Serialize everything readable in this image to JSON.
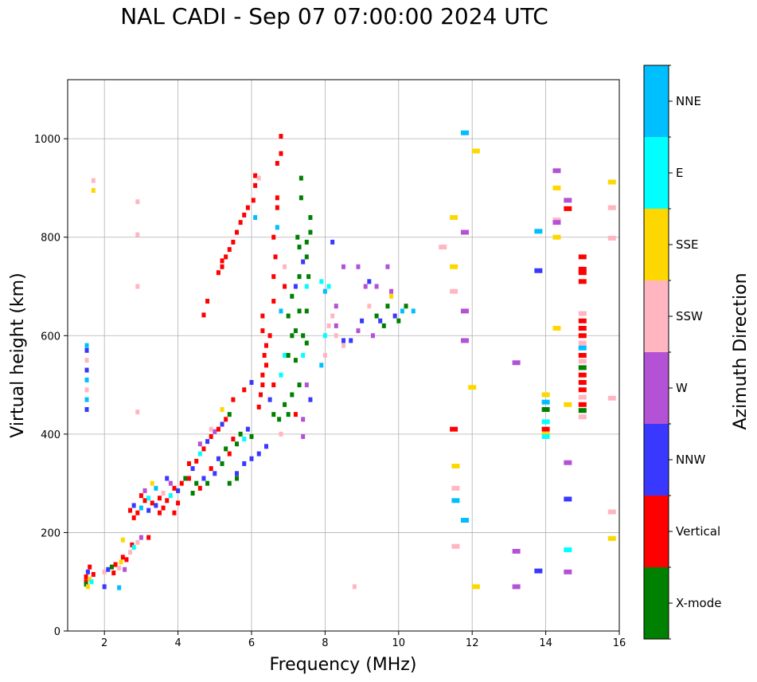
{
  "chart_data": {
    "type": "scatter",
    "title": "NAL CADI - Sep 07 07:00:00 2024 UTC",
    "xlabel": "Frequency (MHz)",
    "ylabel": "Virtual height (km)",
    "xlim": [
      1,
      16
    ],
    "ylim": [
      0,
      1120
    ],
    "x_ticks": [
      "2",
      "4",
      "6",
      "8",
      "10",
      "12",
      "14",
      "16"
    ],
    "y_ticks": [
      "0",
      "200",
      "400",
      "600",
      "800",
      "1000"
    ],
    "grid": true,
    "colorbar": {
      "label": "Azimuth Direction",
      "categories": [
        {
          "name": "X-mode",
          "color": "#008000"
        },
        {
          "name": "Vertical",
          "color": "#ff0000"
        },
        {
          "name": "NNW",
          "color": "#3838ff"
        },
        {
          "name": "W",
          "color": "#b452d6"
        },
        {
          "name": "SSW",
          "color": "#ffb6c1"
        },
        {
          "name": "SSE",
          "color": "#ffd700"
        },
        {
          "name": "E",
          "color": "#00ffff"
        },
        {
          "name": "NNE",
          "color": "#00bfff"
        }
      ]
    },
    "points": [
      [
        1.5,
        100,
        1
      ],
      [
        1.5,
        110,
        1
      ],
      [
        1.55,
        120,
        2
      ],
      [
        1.6,
        105,
        5
      ],
      [
        1.5,
        95,
        0
      ],
      [
        1.6,
        130,
        1
      ],
      [
        1.7,
        115,
        1
      ],
      [
        1.55,
        90,
        5
      ],
      [
        1.65,
        100,
        6
      ],
      [
        1.52,
        450,
        2
      ],
      [
        1.52,
        470,
        7
      ],
      [
        1.52,
        490,
        4
      ],
      [
        1.52,
        510,
        7
      ],
      [
        1.52,
        530,
        2
      ],
      [
        1.52,
        550,
        4
      ],
      [
        1.52,
        570,
        2
      ],
      [
        1.52,
        580,
        7
      ],
      [
        1.7,
        895,
        5
      ],
      [
        1.7,
        915,
        4
      ],
      [
        2.0,
        120,
        4
      ],
      [
        2.1,
        125,
        2
      ],
      [
        2.2,
        130,
        0
      ],
      [
        2.25,
        118,
        1
      ],
      [
        2.3,
        135,
        1
      ],
      [
        2.4,
        128,
        4
      ],
      [
        2.45,
        140,
        5
      ],
      [
        2.5,
        150,
        1
      ],
      [
        2.55,
        125,
        3
      ],
      [
        2.6,
        145,
        1
      ],
      [
        2.7,
        160,
        4
      ],
      [
        2.75,
        175,
        1
      ],
      [
        2.5,
        185,
        5
      ],
      [
        2.8,
        170,
        6
      ],
      [
        2.9,
        180,
        4
      ],
      [
        3.0,
        190,
        3
      ],
      [
        3.2,
        190,
        1
      ],
      [
        2.4,
        88,
        7
      ],
      [
        2.0,
        90,
        2
      ],
      [
        2.9,
        700,
        4
      ],
      [
        2.9,
        805,
        4
      ],
      [
        2.9,
        872,
        4
      ],
      [
        2.9,
        445,
        4
      ],
      [
        2.7,
        245,
        1
      ],
      [
        2.8,
        255,
        2
      ],
      [
        2.9,
        240,
        1
      ],
      [
        3.0,
        250,
        7
      ],
      [
        3.1,
        265,
        1
      ],
      [
        3.2,
        270,
        6
      ],
      [
        3.3,
        260,
        1
      ],
      [
        3.4,
        255,
        2
      ],
      [
        3.5,
        270,
        1
      ],
      [
        3.6,
        280,
        4
      ],
      [
        3.7,
        265,
        1
      ],
      [
        3.8,
        275,
        6
      ],
      [
        3.9,
        290,
        1
      ],
      [
        4.0,
        285,
        2
      ],
      [
        4.1,
        300,
        1
      ],
      [
        4.2,
        310,
        0
      ],
      [
        3.0,
        275,
        1
      ],
      [
        3.2,
        245,
        2
      ],
      [
        3.4,
        290,
        7
      ],
      [
        3.6,
        250,
        1
      ],
      [
        3.8,
        300,
        3
      ],
      [
        4.0,
        260,
        1
      ],
      [
        2.8,
        230,
        1
      ],
      [
        3.1,
        285,
        3
      ],
      [
        3.3,
        300,
        5
      ],
      [
        3.5,
        240,
        1
      ],
      [
        3.7,
        310,
        2
      ],
      [
        3.9,
        240,
        1
      ],
      [
        4.3,
        310,
        1
      ],
      [
        4.4,
        330,
        2
      ],
      [
        4.5,
        345,
        1
      ],
      [
        4.6,
        360,
        6
      ],
      [
        4.7,
        370,
        1
      ],
      [
        4.8,
        385,
        2
      ],
      [
        4.9,
        395,
        1
      ],
      [
        5.0,
        405,
        3
      ],
      [
        5.1,
        410,
        1
      ],
      [
        5.2,
        420,
        2
      ],
      [
        5.3,
        430,
        1
      ],
      [
        5.4,
        440,
        0
      ],
      [
        4.5,
        300,
        0
      ],
      [
        4.7,
        310,
        2
      ],
      [
        4.9,
        330,
        1
      ],
      [
        5.1,
        350,
        2
      ],
      [
        5.3,
        370,
        0
      ],
      [
        5.5,
        390,
        1
      ],
      [
        5.7,
        400,
        0
      ],
      [
        5.9,
        410,
        2
      ],
      [
        4.4,
        280,
        0
      ],
      [
        4.6,
        290,
        1
      ],
      [
        4.8,
        300,
        0
      ],
      [
        5.0,
        320,
        2
      ],
      [
        5.2,
        340,
        0
      ],
      [
        5.4,
        360,
        1
      ],
      [
        5.6,
        380,
        0
      ],
      [
        5.8,
        390,
        6
      ],
      [
        6.0,
        395,
        0
      ],
      [
        4.3,
        340,
        1
      ],
      [
        4.6,
        380,
        3
      ],
      [
        4.9,
        410,
        4
      ],
      [
        5.2,
        450,
        5
      ],
      [
        5.5,
        470,
        1
      ],
      [
        5.8,
        490,
        1
      ],
      [
        6.0,
        505,
        2
      ],
      [
        5.6,
        320,
        2
      ],
      [
        5.8,
        340,
        2
      ],
      [
        6.0,
        350,
        2
      ],
      [
        6.2,
        360,
        2
      ],
      [
        6.4,
        375,
        2
      ],
      [
        5.4,
        300,
        0
      ],
      [
        5.6,
        310,
        0
      ],
      [
        4.7,
        642,
        1
      ],
      [
        4.8,
        670,
        1
      ],
      [
        5.1,
        728,
        1
      ],
      [
        5.2,
        740,
        1
      ],
      [
        5.3,
        760,
        1
      ],
      [
        5.4,
        775,
        1
      ],
      [
        5.5,
        790,
        1
      ],
      [
        5.6,
        810,
        1
      ],
      [
        5.7,
        830,
        1
      ],
      [
        5.8,
        845,
        1
      ],
      [
        5.9,
        860,
        1
      ],
      [
        6.05,
        875,
        1
      ],
      [
        6.1,
        905,
        1
      ],
      [
        6.1,
        925,
        1
      ],
      [
        6.1,
        840,
        7
      ],
      [
        6.2,
        920,
        4
      ],
      [
        5.2,
        752,
        1
      ],
      [
        6.3,
        610,
        1
      ],
      [
        6.3,
        640,
        1
      ],
      [
        6.35,
        560,
        1
      ],
      [
        6.3,
        520,
        1
      ],
      [
        6.3,
        500,
        1
      ],
      [
        6.25,
        480,
        1
      ],
      [
        6.2,
        455,
        1
      ],
      [
        6.4,
        580,
        1
      ],
      [
        6.4,
        540,
        1
      ],
      [
        6.5,
        600,
        1
      ],
      [
        6.5,
        470,
        2
      ],
      [
        6.6,
        440,
        0
      ],
      [
        6.6,
        500,
        1
      ],
      [
        6.6,
        670,
        1
      ],
      [
        6.6,
        720,
        1
      ],
      [
        6.65,
        760,
        1
      ],
      [
        6.7,
        950,
        1
      ],
      [
        6.8,
        970,
        1
      ],
      [
        6.8,
        1005,
        1
      ],
      [
        6.7,
        880,
        1
      ],
      [
        6.7,
        860,
        1
      ],
      [
        6.7,
        820,
        7
      ],
      [
        6.6,
        800,
        1
      ],
      [
        6.8,
        650,
        7
      ],
      [
        6.9,
        700,
        1
      ],
      [
        6.9,
        740,
        4
      ],
      [
        6.9,
        560,
        6
      ],
      [
        6.8,
        520,
        6
      ],
      [
        6.75,
        430,
        0
      ],
      [
        6.8,
        400,
        4
      ],
      [
        7.0,
        640,
        0
      ],
      [
        7.1,
        680,
        0
      ],
      [
        7.2,
        700,
        2
      ],
      [
        7.3,
        720,
        0
      ],
      [
        7.4,
        750,
        2
      ],
      [
        7.5,
        760,
        0
      ],
      [
        7.5,
        700,
        6
      ],
      [
        7.3,
        650,
        0
      ],
      [
        7.1,
        600,
        0
      ],
      [
        7.0,
        560,
        0
      ],
      [
        7.2,
        550,
        0
      ],
      [
        7.4,
        560,
        6
      ],
      [
        7.5,
        585,
        0
      ],
      [
        7.3,
        500,
        0
      ],
      [
        7.1,
        480,
        0
      ],
      [
        7.0,
        440,
        0
      ],
      [
        6.9,
        460,
        0
      ],
      [
        7.2,
        440,
        1
      ],
      [
        7.4,
        430,
        3
      ],
      [
        7.5,
        500,
        3
      ],
      [
        7.6,
        840,
        0
      ],
      [
        7.6,
        810,
        0
      ],
      [
        7.5,
        790,
        0
      ],
      [
        7.3,
        780,
        0
      ],
      [
        7.25,
        800,
        0
      ],
      [
        7.35,
        880,
        0
      ],
      [
        7.35,
        920,
        0
      ],
      [
        7.4,
        600,
        0
      ],
      [
        7.55,
        720,
        0
      ],
      [
        7.5,
        650,
        0
      ],
      [
        7.2,
        610,
        0
      ],
      [
        7.6,
        470,
        2
      ],
      [
        7.4,
        395,
        3
      ],
      [
        7.9,
        540,
        7
      ],
      [
        8.0,
        560,
        4
      ],
      [
        8.0,
        600,
        6
      ],
      [
        8.1,
        620,
        4
      ],
      [
        8.2,
        640,
        4
      ],
      [
        8.3,
        660,
        3
      ],
      [
        8.5,
        590,
        2
      ],
      [
        8.7,
        590,
        2
      ],
      [
        8.9,
        610,
        3
      ],
      [
        9.0,
        630,
        2
      ],
      [
        9.2,
        660,
        4
      ],
      [
        9.3,
        600,
        3
      ],
      [
        9.4,
        640,
        0
      ],
      [
        9.5,
        630,
        2
      ],
      [
        9.6,
        620,
        0
      ],
      [
        9.7,
        660,
        0
      ],
      [
        9.8,
        680,
        5
      ],
      [
        9.9,
        640,
        2
      ],
      [
        10.0,
        630,
        0
      ],
      [
        10.1,
        650,
        7
      ],
      [
        10.2,
        660,
        0
      ],
      [
        10.4,
        650,
        7
      ],
      [
        8.1,
        700,
        6
      ],
      [
        8.5,
        740,
        3
      ],
      [
        8.9,
        740,
        3
      ],
      [
        9.1,
        700,
        3
      ],
      [
        9.2,
        710,
        2
      ],
      [
        9.4,
        700,
        3
      ],
      [
        9.7,
        740,
        3
      ],
      [
        9.8,
        690,
        3
      ],
      [
        8.0,
        690,
        7
      ],
      [
        8.3,
        600,
        4
      ],
      [
        7.9,
        710,
        6
      ],
      [
        8.3,
        620,
        3
      ],
      [
        8.5,
        580,
        4
      ],
      [
        8.2,
        790,
        2
      ],
      [
        8.8,
        90,
        4
      ],
      [
        11.2,
        780,
        4
      ],
      [
        11.5,
        840,
        5
      ],
      [
        11.5,
        740,
        5
      ],
      [
        11.5,
        690,
        4
      ],
      [
        11.5,
        410,
        1
      ],
      [
        11.55,
        335,
        5
      ],
      [
        11.55,
        290,
        4
      ],
      [
        11.55,
        265,
        7
      ],
      [
        11.55,
        172,
        4
      ],
      [
        11.8,
        1012,
        7
      ],
      [
        11.8,
        810,
        3
      ],
      [
        11.8,
        650,
        3
      ],
      [
        11.8,
        590,
        3
      ],
      [
        11.8,
        225,
        7
      ],
      [
        12.1,
        975,
        5
      ],
      [
        12.0,
        495,
        5
      ],
      [
        12.1,
        90,
        5
      ],
      [
        13.2,
        545,
        3
      ],
      [
        13.2,
        162,
        3
      ],
      [
        13.2,
        90,
        3
      ],
      [
        13.8,
        812,
        7
      ],
      [
        13.8,
        732,
        2
      ],
      [
        13.8,
        122,
        2
      ],
      [
        14.0,
        480,
        5
      ],
      [
        14.0,
        465,
        7
      ],
      [
        14.0,
        450,
        0
      ],
      [
        14.0,
        425,
        6
      ],
      [
        14.0,
        410,
        1
      ],
      [
        14.0,
        400,
        5
      ],
      [
        14.0,
        395,
        6
      ],
      [
        14.3,
        935,
        3
      ],
      [
        14.3,
        900,
        5
      ],
      [
        14.3,
        835,
        4
      ],
      [
        14.3,
        830,
        3
      ],
      [
        14.3,
        800,
        5
      ],
      [
        14.3,
        615,
        5
      ],
      [
        14.6,
        875,
        3
      ],
      [
        14.6,
        858,
        1
      ],
      [
        14.6,
        460,
        5
      ],
      [
        14.6,
        342,
        3
      ],
      [
        14.6,
        268,
        2
      ],
      [
        14.6,
        165,
        6
      ],
      [
        14.6,
        120,
        3
      ],
      [
        15.0,
        760,
        1
      ],
      [
        15.0,
        735,
        1
      ],
      [
        15.0,
        728,
        1
      ],
      [
        15.0,
        710,
        1
      ],
      [
        15.0,
        645,
        4
      ],
      [
        15.0,
        630,
        1
      ],
      [
        15.0,
        615,
        1
      ],
      [
        15.0,
        600,
        1
      ],
      [
        15.0,
        585,
        4
      ],
      [
        15.0,
        575,
        7
      ],
      [
        15.0,
        560,
        1
      ],
      [
        15.0,
        548,
        4
      ],
      [
        15.0,
        535,
        0
      ],
      [
        15.0,
        520,
        1
      ],
      [
        15.0,
        505,
        1
      ],
      [
        15.0,
        490,
        1
      ],
      [
        15.0,
        475,
        4
      ],
      [
        15.0,
        460,
        1
      ],
      [
        15.0,
        448,
        0
      ],
      [
        15.0,
        435,
        4
      ],
      [
        15.8,
        912,
        5
      ],
      [
        15.8,
        860,
        4
      ],
      [
        15.8,
        798,
        4
      ],
      [
        15.8,
        473,
        4
      ],
      [
        15.8,
        242,
        4
      ],
      [
        15.8,
        188,
        5
      ]
    ]
  }
}
